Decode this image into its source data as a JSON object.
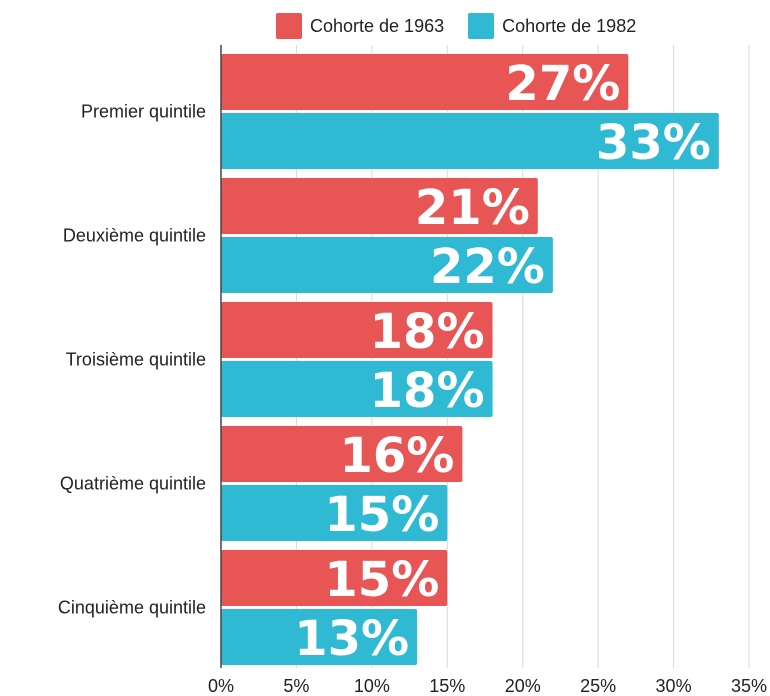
{
  "chart_data": {
    "type": "bar",
    "orientation": "horizontal",
    "categories": [
      "Premier quintile",
      "Deuxième quintile",
      "Troisième quintile",
      "Quatrième quintile",
      "Cinquième quintile"
    ],
    "series": [
      {
        "name": "Cohorte de 1963",
        "color": "#e85555",
        "values": [
          27,
          21,
          18,
          16,
          15
        ],
        "labels": [
          "27%",
          "21%",
          "18%",
          "16%",
          "15%"
        ]
      },
      {
        "name": "Cohorte de 1982",
        "color": "#2fb9d3",
        "values": [
          33,
          22,
          18,
          15,
          13
        ],
        "labels": [
          "33%",
          "22%",
          "18%",
          "15%",
          "13%"
        ]
      }
    ],
    "xlim": [
      0,
      35
    ],
    "x_ticks": [
      0,
      5,
      10,
      15,
      20,
      25,
      30,
      35
    ],
    "x_tick_labels": [
      "0%",
      "5%",
      "10%",
      "15%",
      "20%",
      "25%",
      "30%",
      "35%"
    ],
    "grid": true,
    "legend": "top"
  }
}
